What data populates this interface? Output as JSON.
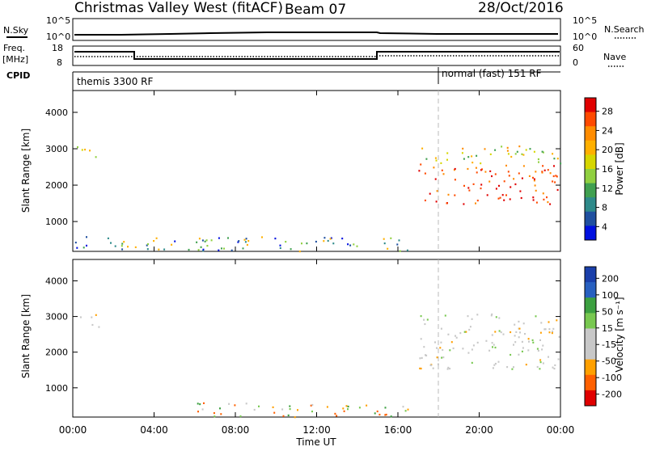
{
  "header": {
    "title": "Christmas Valley West (fitACF)",
    "beam": "Beam 07",
    "date": "28/Oct/2016"
  },
  "strips": {
    "nsky_label": "N.Sky",
    "nsky_ticks": [
      "10^5",
      "10^0"
    ],
    "nsearch_label": "N.Search",
    "nsearch_ticks": [
      "10^5",
      "10^0"
    ],
    "freq_label_line1": "Freq.",
    "freq_label_line2": "[MHz]",
    "freq_ticks": [
      "18",
      "8"
    ],
    "nave_label": "Nave",
    "nave_ticks": [
      "60",
      "0"
    ],
    "cpid_label": "CPID",
    "cpid_modes": [
      {
        "label": "themis 3300 RF"
      },
      {
        "label": "normal (fast) 151 RF"
      }
    ]
  },
  "chart_data": [
    {
      "type": "heatmap",
      "panel": "power",
      "ylabel": "Slant Range [km]",
      "yticks": [
        "1000",
        "2000",
        "3000",
        "4000"
      ],
      "ylim": [
        180,
        4600
      ],
      "xlim": [
        0,
        24
      ],
      "colorbar": {
        "label": "Power [dB]",
        "ticks": [
          "28",
          "24",
          "20",
          "16",
          "12",
          "8",
          "4"
        ],
        "colors": [
          "#e00000",
          "#ff4a00",
          "#ff8c00",
          "#ffb000",
          "#d6d600",
          "#90d040",
          "#40a050",
          "#2e8a8a",
          "#2050a0",
          "#0010e0"
        ]
      },
      "regions": [
        {
          "t": [
            0.2,
            1.3
          ],
          "r": [
            2700,
            3100
          ],
          "level": "mid"
        },
        {
          "t": [
            0.1,
            7.0
          ],
          "r": [
            200,
            600
          ],
          "level": "low"
        },
        {
          "t": [
            6.0,
            16.5
          ],
          "r": [
            200,
            600
          ],
          "level": "low"
        },
        {
          "t": [
            17.0,
            24.0
          ],
          "r": [
            1500,
            2600
          ],
          "level": "high"
        },
        {
          "t": [
            17.0,
            24.0
          ],
          "r": [
            2600,
            3100
          ],
          "level": "mid"
        }
      ]
    },
    {
      "type": "heatmap",
      "panel": "velocity",
      "ylabel": "Slant Range [km]",
      "yticks": [
        "1000",
        "2000",
        "3000",
        "4000"
      ],
      "ylim": [
        180,
        4600
      ],
      "xlim": [
        0,
        24
      ],
      "xlabel": "Time UT",
      "xticks": [
        "00:00",
        "04:00",
        "08:00",
        "12:00",
        "16:00",
        "20:00",
        "00:00"
      ],
      "colorbar": {
        "label": "Velocity [m s⁻¹]",
        "ticks": [
          "200",
          "100",
          "50",
          "15",
          "-15",
          "-50",
          "-100",
          "-200"
        ],
        "colors": [
          "#1a3faa",
          "#2860c0",
          "#3ca040",
          "#78c850",
          "#c8c8c8",
          "#c8c8c8",
          "#ffa000",
          "#ff6000",
          "#e00000"
        ]
      },
      "regions": [
        {
          "t": [
            0.2,
            1.3
          ],
          "r": [
            2700,
            3100
          ],
          "level": "ground"
        },
        {
          "t": [
            6.0,
            16.5
          ],
          "r": [
            200,
            600
          ],
          "level": "negative"
        },
        {
          "t": [
            17.0,
            24.0
          ],
          "r": [
            1500,
            3100
          ],
          "level": "ground"
        }
      ]
    }
  ]
}
